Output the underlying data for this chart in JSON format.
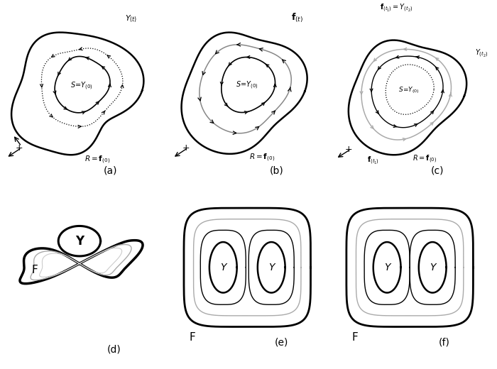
{
  "bg": "#ffffff",
  "panels": [
    "(a)",
    "(b)",
    "(c)",
    "(d)",
    "(e)",
    "(f)"
  ],
  "lw_thick": 2.2,
  "lw_mid": 1.0,
  "lw_thin": 0.9,
  "col_black": "#000000",
  "col_gray": "#aaaaaa",
  "col_dgray": "#777777"
}
